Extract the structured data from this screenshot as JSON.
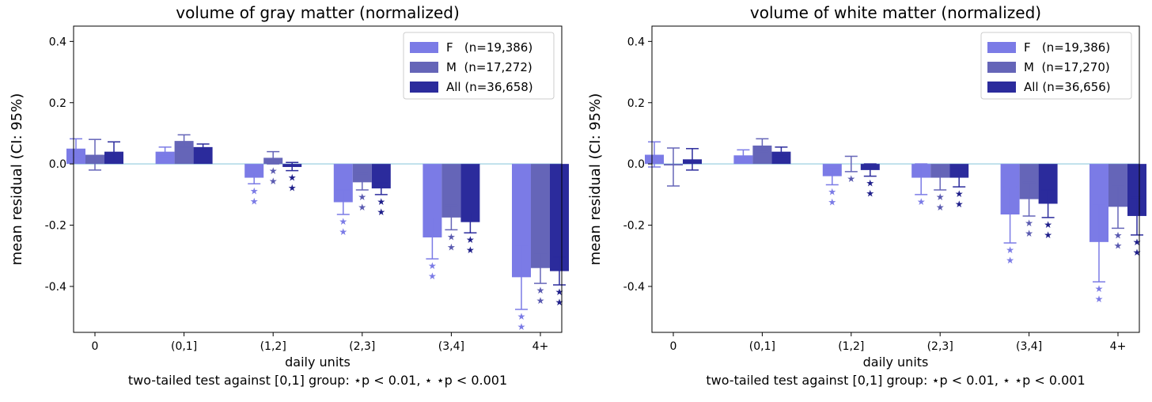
{
  "colors": {
    "F": "#7b7be6",
    "M": "#6565b8",
    "All": "#2b2b9c",
    "zero_line": "#add8e6",
    "F_star": "#7b7be6",
    "M_star": "#5a5ab0",
    "All_star": "#1f1f8a"
  },
  "chart_data": [
    {
      "type": "bar",
      "title": "volume of gray matter (normalized)",
      "xlabel": "daily units",
      "ylabel": "mean residual (CI: 95%)",
      "footnote": "two-tailed test against [0,1] group: ⋆p < 0.01, ⋆ ⋆p < 0.001",
      "ylim": [
        -0.55,
        0.45
      ],
      "yticks": [
        "0.4",
        "0.2",
        "0.0",
        "-0.2",
        "-0.4"
      ],
      "ytick_values": [
        0.4,
        0.2,
        0.0,
        -0.2,
        -0.4
      ],
      "categories": [
        "0",
        "(0,1]",
        "(1,2]",
        "(2,3]",
        "(3,4]",
        "4+"
      ],
      "legend_position": "top-right",
      "series": [
        {
          "name": "F",
          "legend": "F   (n=19,386)",
          "values": [
            0.05,
            0.04,
            -0.045,
            -0.125,
            -0.24,
            -0.37
          ],
          "ci_low": [
            0.02,
            0.025,
            -0.065,
            -0.165,
            -0.31,
            -0.475
          ],
          "ci_high": [
            0.082,
            0.055,
            -0.025,
            -0.085,
            -0.175,
            -0.265
          ],
          "stars": [
            0,
            0,
            2,
            2,
            2,
            2
          ]
        },
        {
          "name": "M",
          "legend": "M  (n=17,272)",
          "values": [
            0.03,
            0.075,
            0.02,
            -0.06,
            -0.175,
            -0.34
          ],
          "ci_low": [
            -0.02,
            0.055,
            0.0,
            -0.085,
            -0.215,
            -0.39
          ],
          "ci_high": [
            0.08,
            0.095,
            0.04,
            -0.032,
            -0.135,
            -0.29
          ],
          "stars": [
            0,
            0,
            2,
            2,
            2,
            2
          ]
        },
        {
          "name": "All",
          "legend": "All (n=36,658)",
          "values": [
            0.04,
            0.055,
            -0.01,
            -0.08,
            -0.19,
            -0.35
          ],
          "ci_low": [
            0.01,
            0.045,
            -0.022,
            -0.1,
            -0.225,
            -0.395
          ],
          "ci_high": [
            0.072,
            0.065,
            0.005,
            -0.062,
            -0.158,
            -0.305
          ],
          "stars": [
            0,
            0,
            2,
            2,
            2,
            2
          ]
        }
      ]
    },
    {
      "type": "bar",
      "title": "volume of white matter (normalized)",
      "xlabel": "daily units",
      "ylabel": "mean residual (CI: 95%)",
      "footnote": "two-tailed test against [0,1] group: ⋆p < 0.01, ⋆ ⋆p < 0.001",
      "ylim": [
        -0.55,
        0.45
      ],
      "yticks": [
        "0.4",
        "0.2",
        "0.0",
        "-0.2",
        "-0.4"
      ],
      "ytick_values": [
        0.4,
        0.2,
        0.0,
        -0.2,
        -0.4
      ],
      "categories": [
        "0",
        "(0,1]",
        "(1,2]",
        "(2,3]",
        "(3,4]",
        "4+"
      ],
      "legend_position": "top-right",
      "series": [
        {
          "name": "F",
          "legend": "F   (n=19,386)",
          "values": [
            0.03,
            0.028,
            -0.04,
            -0.045,
            -0.165,
            -0.255
          ],
          "ci_low": [
            -0.01,
            0.01,
            -0.068,
            -0.1,
            -0.258,
            -0.385
          ],
          "ci_high": [
            0.072,
            0.046,
            -0.015,
            0.0,
            -0.075,
            -0.13
          ],
          "stars": [
            0,
            0,
            2,
            1,
            2,
            2
          ]
        },
        {
          "name": "M",
          "legend": "M  (n=17,270)",
          "values": [
            -0.005,
            0.06,
            0.0,
            -0.045,
            -0.115,
            -0.14
          ],
          "ci_low": [
            -0.072,
            0.04,
            -0.025,
            -0.085,
            -0.17,
            -0.21
          ],
          "ci_high": [
            0.052,
            0.082,
            0.025,
            -0.005,
            -0.06,
            -0.072
          ],
          "stars": [
            0,
            0,
            1,
            2,
            2,
            2
          ]
        },
        {
          "name": "All",
          "legend": "All (n=36,656)",
          "values": [
            0.015,
            0.04,
            -0.02,
            -0.045,
            -0.13,
            -0.17
          ],
          "ci_low": [
            -0.02,
            0.025,
            -0.04,
            -0.075,
            -0.175,
            -0.232
          ],
          "ci_high": [
            0.05,
            0.055,
            0.0,
            -0.015,
            -0.085,
            -0.11
          ],
          "stars": [
            0,
            0,
            2,
            2,
            2,
            2
          ]
        }
      ]
    }
  ]
}
